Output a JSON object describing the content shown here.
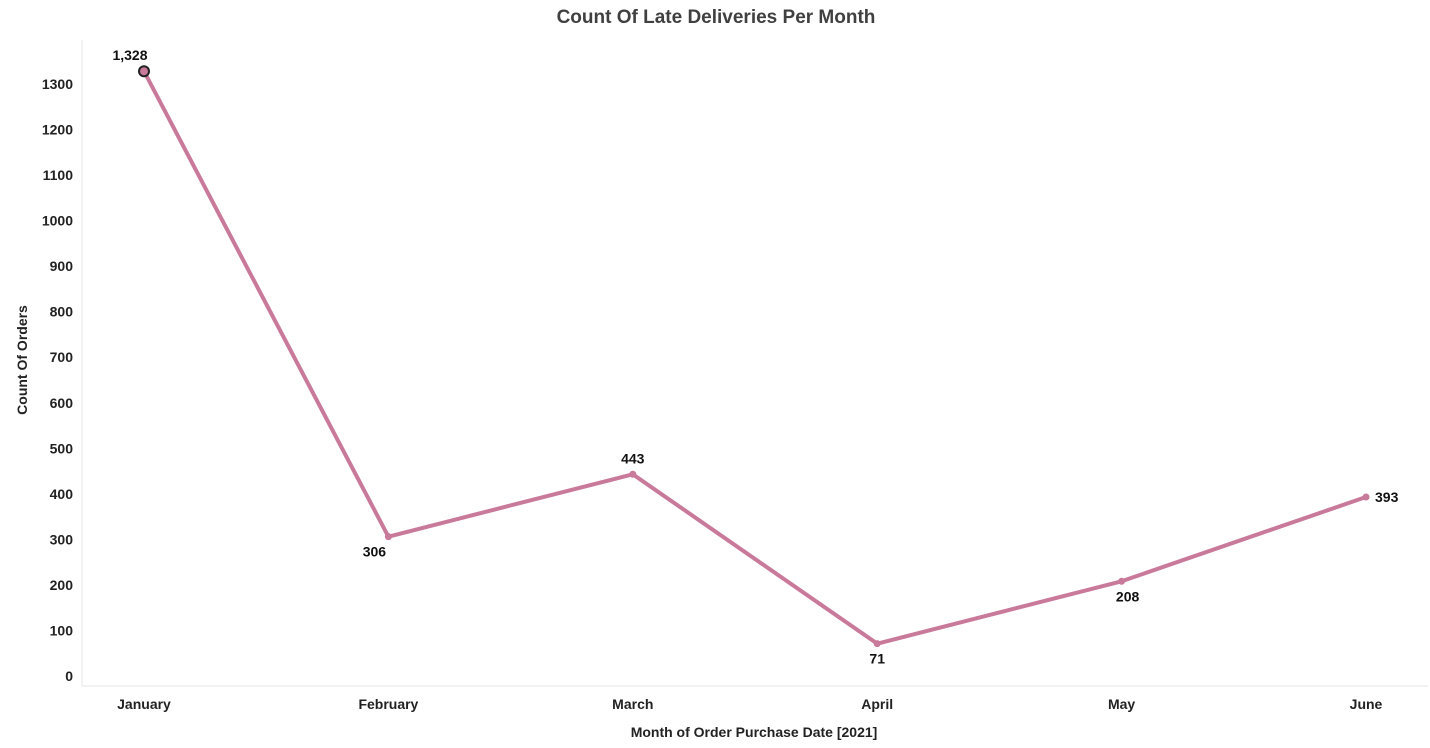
{
  "chart_data": {
    "type": "line",
    "title": "Count Of Late Deliveries Per Month",
    "xlabel": "Month of Order Purchase Date [2021]",
    "ylabel": "Count Of Orders",
    "categories": [
      "January",
      "February",
      "March",
      "April",
      "May",
      "June"
    ],
    "values": [
      1328,
      306,
      443,
      71,
      208,
      393
    ],
    "data_labels": [
      "1,328",
      "306",
      "443",
      "71",
      "208",
      "393"
    ],
    "yticks": [
      0,
      100,
      200,
      300,
      400,
      500,
      600,
      700,
      800,
      900,
      1000,
      1100,
      1200,
      1300
    ],
    "ytick_labels": [
      "0",
      "100",
      "200",
      "300",
      "400",
      "500",
      "600",
      "700",
      "800",
      "900",
      "1000",
      "1100",
      "1200",
      "1300"
    ],
    "ylim": [
      0,
      1400
    ],
    "grid": false,
    "legend": "none",
    "line_color": "#c9799a",
    "highlight_index": 0
  }
}
